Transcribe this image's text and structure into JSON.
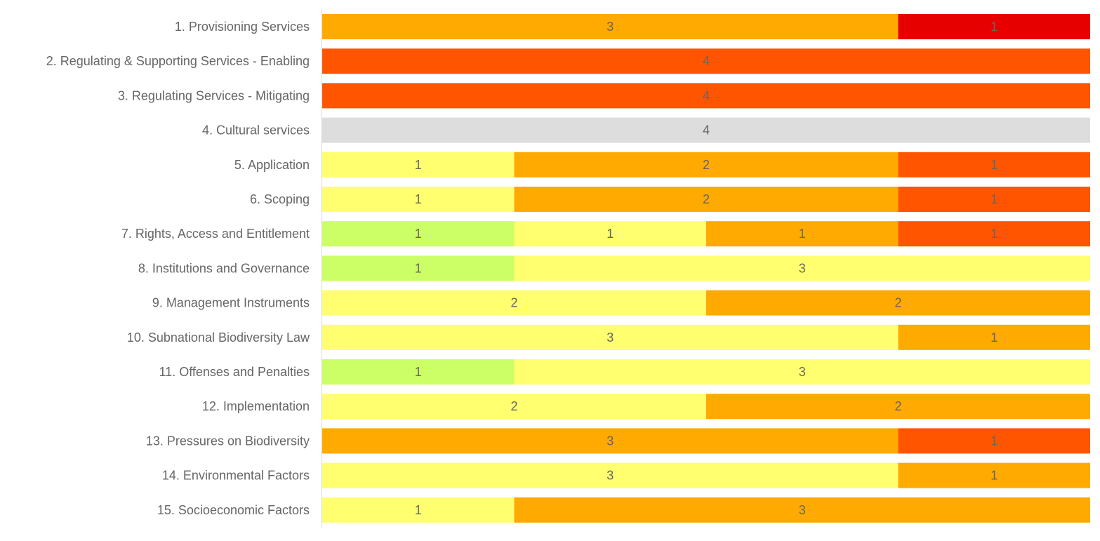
{
  "chart_data": {
    "type": "bar",
    "orientation": "horizontal",
    "stacked": true,
    "categories": [
      "1. Provisioning Services",
      "2. Regulating & Supporting Services - Enabling",
      "3. Regulating Services - Mitigating",
      "4. Cultural services",
      "5. Application",
      "6. Scoping",
      "7. Rights, Access and Entitlement",
      "8. Institutions and Governance",
      "9. Management Instruments",
      "10. Subnational Biodiversity Law",
      "11. Offenses and Penalties",
      "12. Implementation",
      "13. Pressures on Biodiversity",
      "14. Environmental Factors",
      "15. Socioeconomic Factors"
    ],
    "series": [
      {
        "color": "#ccff66",
        "values": [
          0,
          0,
          0,
          0,
          0,
          0,
          1,
          1,
          0,
          0,
          1,
          0,
          0,
          0,
          0
        ]
      },
      {
        "color": "#ffff70",
        "values": [
          0,
          0,
          0,
          0,
          1,
          1,
          1,
          3,
          2,
          3,
          3,
          2,
          0,
          3,
          1
        ]
      },
      {
        "color": "#ffaa00",
        "values": [
          3,
          0,
          0,
          0,
          2,
          2,
          1,
          0,
          2,
          1,
          0,
          2,
          3,
          1,
          3
        ]
      },
      {
        "color": "#ff5500",
        "values": [
          0,
          4,
          4,
          0,
          1,
          1,
          1,
          0,
          0,
          0,
          0,
          0,
          1,
          0,
          0
        ]
      },
      {
        "color": "#e60000",
        "values": [
          1,
          0,
          0,
          0,
          0,
          0,
          0,
          0,
          0,
          0,
          0,
          0,
          0,
          0,
          0
        ]
      },
      {
        "color": "#dddddd",
        "values": [
          0,
          0,
          0,
          4,
          0,
          0,
          0,
          0,
          0,
          0,
          0,
          0,
          0,
          0,
          0
        ]
      }
    ],
    "xlim": [
      0,
      4
    ],
    "data_labels": true,
    "grid": false,
    "legend": "none",
    "label_color": "#666666"
  }
}
